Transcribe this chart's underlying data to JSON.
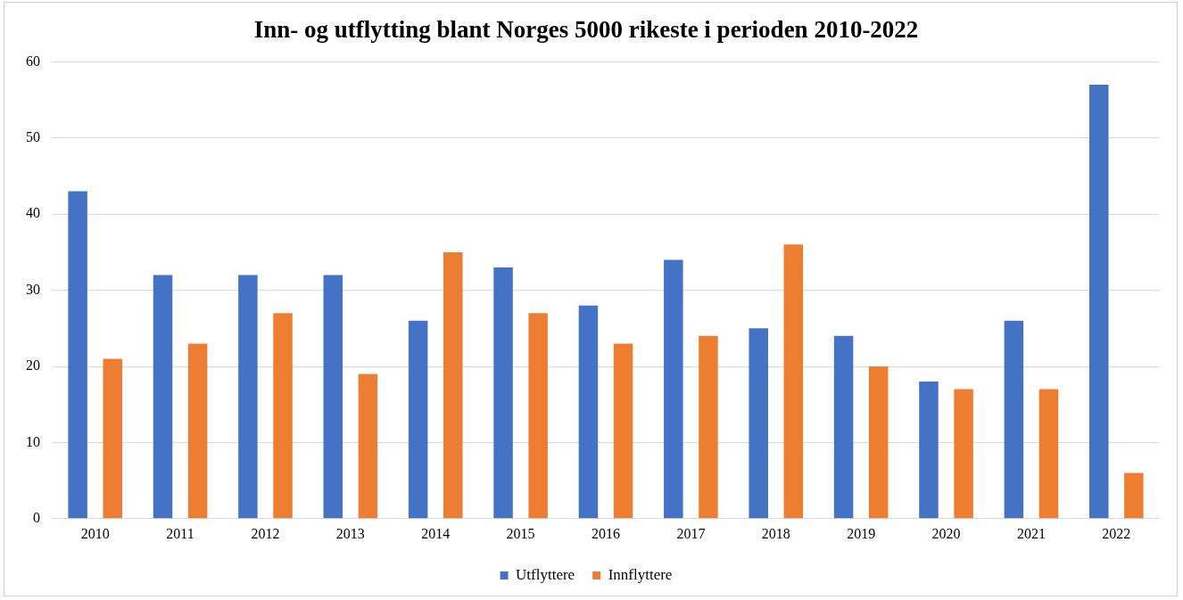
{
  "chart_data": {
    "type": "bar",
    "title": "Inn- og utflytting blant Norges 5000 rikeste i perioden 2010-2022",
    "categories": [
      "2010",
      "2011",
      "2012",
      "2013",
      "2014",
      "2015",
      "2016",
      "2017",
      "2018",
      "2019",
      "2020",
      "2021",
      "2022"
    ],
    "series": [
      {
        "name": "Utflyttere",
        "color": "#4472c4",
        "values": [
          43,
          32,
          32,
          32,
          26,
          33,
          28,
          34,
          25,
          24,
          18,
          26,
          57
        ]
      },
      {
        "name": "Innflyttere",
        "color": "#ed7d31",
        "values": [
          21,
          23,
          27,
          19,
          35,
          27,
          23,
          24,
          36,
          20,
          17,
          17,
          6
        ]
      }
    ],
    "ylim": [
      0,
      60
    ],
    "yticks": [
      0,
      10,
      20,
      30,
      40,
      50,
      60
    ],
    "grid": "y",
    "legend": "bottom"
  }
}
